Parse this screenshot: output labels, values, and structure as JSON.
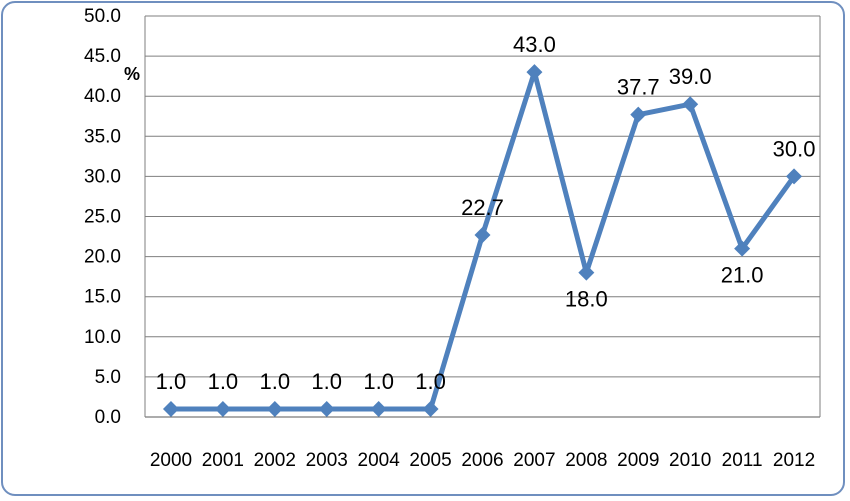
{
  "chart_data": {
    "type": "line",
    "title": "",
    "xlabel": "",
    "ylabel": "%",
    "categories": [
      "2000",
      "2001",
      "2002",
      "2003",
      "2004",
      "2005",
      "2006",
      "2007",
      "2008",
      "2009",
      "2010",
      "2011",
      "2012"
    ],
    "series": [
      {
        "values": [
          1.0,
          1.0,
          1.0,
          1.0,
          1.0,
          1.0,
          22.7,
          43.0,
          18.0,
          37.7,
          39.0,
          21.0,
          30.0
        ]
      }
    ],
    "data_labels": [
      "1.0",
      "1.0",
      "1.0",
      "1.0",
      "1.0",
      "1.0",
      "22.7",
      "43.0",
      "18.0",
      "37.7",
      "39.0",
      "21.0",
      "30.0"
    ],
    "y_ticks": [
      "0.0",
      "5.0",
      "10.0",
      "15.0",
      "20.0",
      "25.0",
      "30.0",
      "35.0",
      "40.0",
      "45.0",
      "50.0"
    ],
    "ylim": [
      0,
      50
    ],
    "grid": true,
    "legend": "none",
    "colors": {
      "line": "#4f81bd",
      "grid": "#7f7f7f",
      "frame": "#6f8fbf"
    }
  }
}
